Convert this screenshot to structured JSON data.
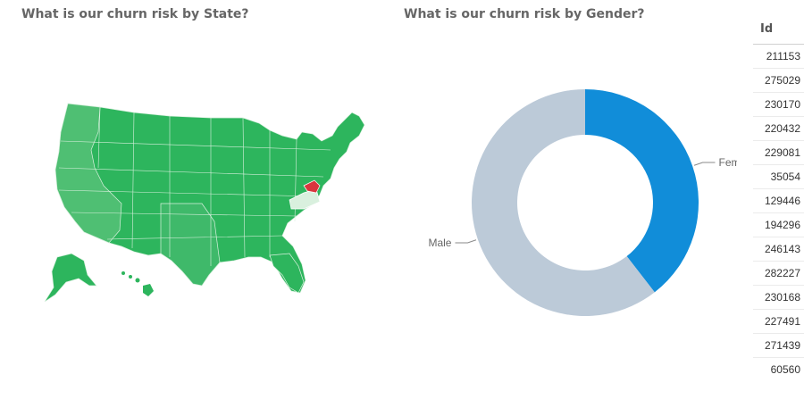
{
  "map_visual": {
    "title": "What is our churn risk by State?"
  },
  "donut_visual": {
    "title": "What is our churn risk by Gender?"
  },
  "table_visual": {
    "header": "Id",
    "rows": [
      "211153",
      "275029",
      "230170",
      "220432",
      "229081",
      "35054",
      "129446",
      "194296",
      "246143",
      "282227",
      "230168",
      "227491",
      "271439",
      "60560"
    ]
  },
  "colors": {
    "map_green": "#2db55d",
    "map_green_light": "#4fbf73",
    "map_green_pale": "#d9f0de",
    "map_red": "#d9363e",
    "female": "#118dd9",
    "male": "#bccad8"
  },
  "chart_data": [
    {
      "type": "pie",
      "title": "What is our churn risk by Gender?",
      "categories": [
        "Female",
        "Male"
      ],
      "values": [
        39.5,
        60.5
      ],
      "donut": true
    }
  ]
}
